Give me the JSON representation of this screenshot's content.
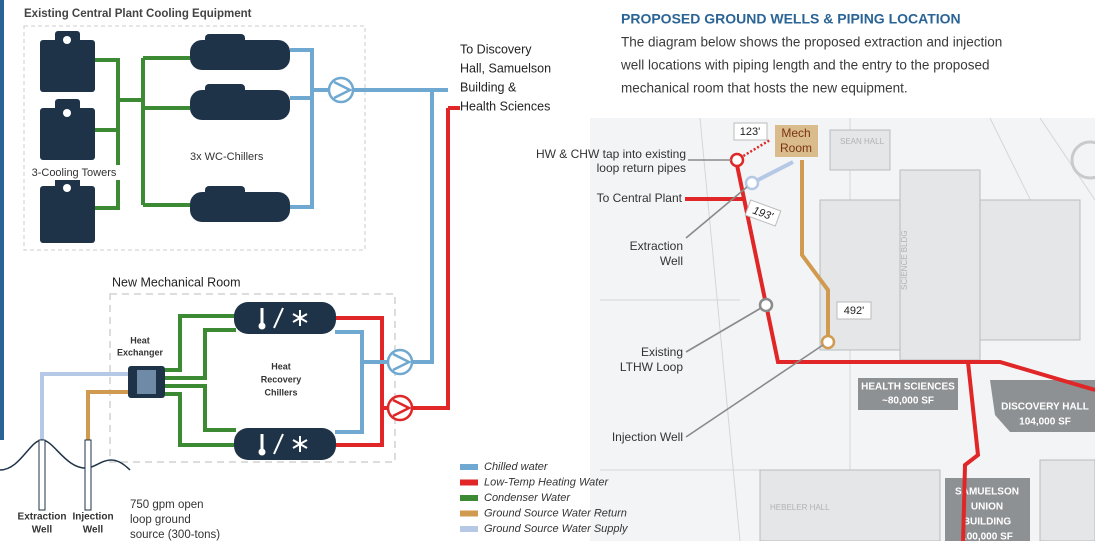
{
  "left": {
    "existing_title": "Existing Central Plant Cooling Equipment",
    "cooling_towers": "3-Cooling Towers",
    "chillers_label": "3x WC-Chillers",
    "destination": [
      "To Discovery",
      "Hall, Samuelson",
      "Building &",
      "Health Sciences"
    ],
    "new_room_title": "New Mechanical Room",
    "heat_exchanger": [
      "Heat",
      "Exchanger"
    ],
    "heat_recovery": [
      "Heat",
      "Recovery",
      "Chillers"
    ],
    "wells": [
      [
        "Extraction",
        "Well"
      ],
      [
        "Injection",
        "Well"
      ]
    ],
    "source_note": [
      "750 gpm open",
      "loop ground",
      "source (300-tons)"
    ],
    "legend": [
      {
        "label": "Chilled water",
        "color": "#6fa8d0"
      },
      {
        "label": "Low-Temp Heating Water",
        "color": "#e02626"
      },
      {
        "label": "Condenser Water",
        "color": "#3d8a35"
      },
      {
        "label": "Ground Source Water Return",
        "color": "#d09a50"
      },
      {
        "label": "Ground Source Water Supply",
        "color": "#b5c8e6"
      }
    ]
  },
  "right": {
    "title": "PROPOSED GROUND WELLS & PIPING LOCATION",
    "description": [
      "The diagram below shows the proposed extraction and injection",
      "well locations with piping length and the entry to the proposed",
      "mechanical room that hosts the new equipment."
    ],
    "mech_room": [
      "Mech",
      "Room"
    ],
    "lengths": [
      "123'",
      "193'",
      "492'"
    ],
    "callouts": {
      "tap": [
        "HW & CHW tap into existing",
        "loop return pipes"
      ],
      "central_plant": "To Central Plant",
      "extraction": [
        "Extraction",
        "Well"
      ],
      "lthw": [
        "Existing",
        "LTHW  Loop"
      ],
      "injection": "Injection Well"
    },
    "buildings": [
      {
        "name": [
          "HEALTH SCIENCES"
        ],
        "area": "~80,000 SF"
      },
      {
        "name": [
          "DISCOVERY HALL"
        ],
        "area": "104,000 SF"
      },
      {
        "name": [
          "SAMUELSON",
          "UNION",
          "BUILDING"
        ],
        "area": "100,000 SF"
      }
    ],
    "map_labels": [
      "SEAN HALL",
      "SCIENCE BLDG",
      "HEBELER HALL"
    ]
  }
}
